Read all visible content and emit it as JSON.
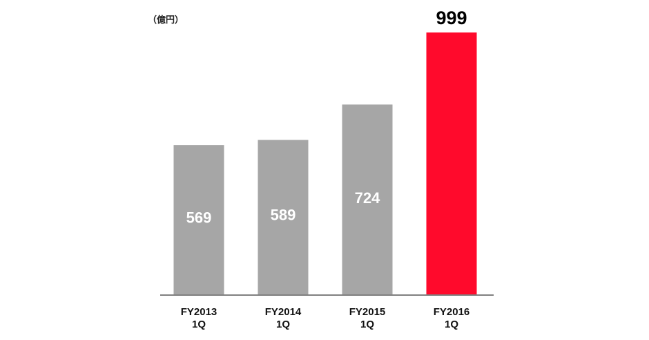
{
  "chart_data": {
    "type": "bar",
    "unit_label": "（億円）",
    "categories": [
      [
        "FY2013",
        "1Q"
      ],
      [
        "FY2014",
        "1Q"
      ],
      [
        "FY2015",
        "1Q"
      ],
      [
        "FY2016",
        "1Q"
      ]
    ],
    "values": [
      569,
      589,
      724,
      999
    ],
    "value_labels": [
      "569",
      "589",
      "724",
      "999"
    ],
    "ylim": [
      0,
      999
    ],
    "grid": false,
    "legend": "none",
    "bar_colors": [
      "#a6a6a6",
      "#a6a6a6",
      "#a6a6a6",
      "#ff0a2c"
    ],
    "highlight_index": 3,
    "label_position": [
      "inside",
      "inside",
      "inside",
      "above"
    ],
    "axis_color": "#808080"
  }
}
